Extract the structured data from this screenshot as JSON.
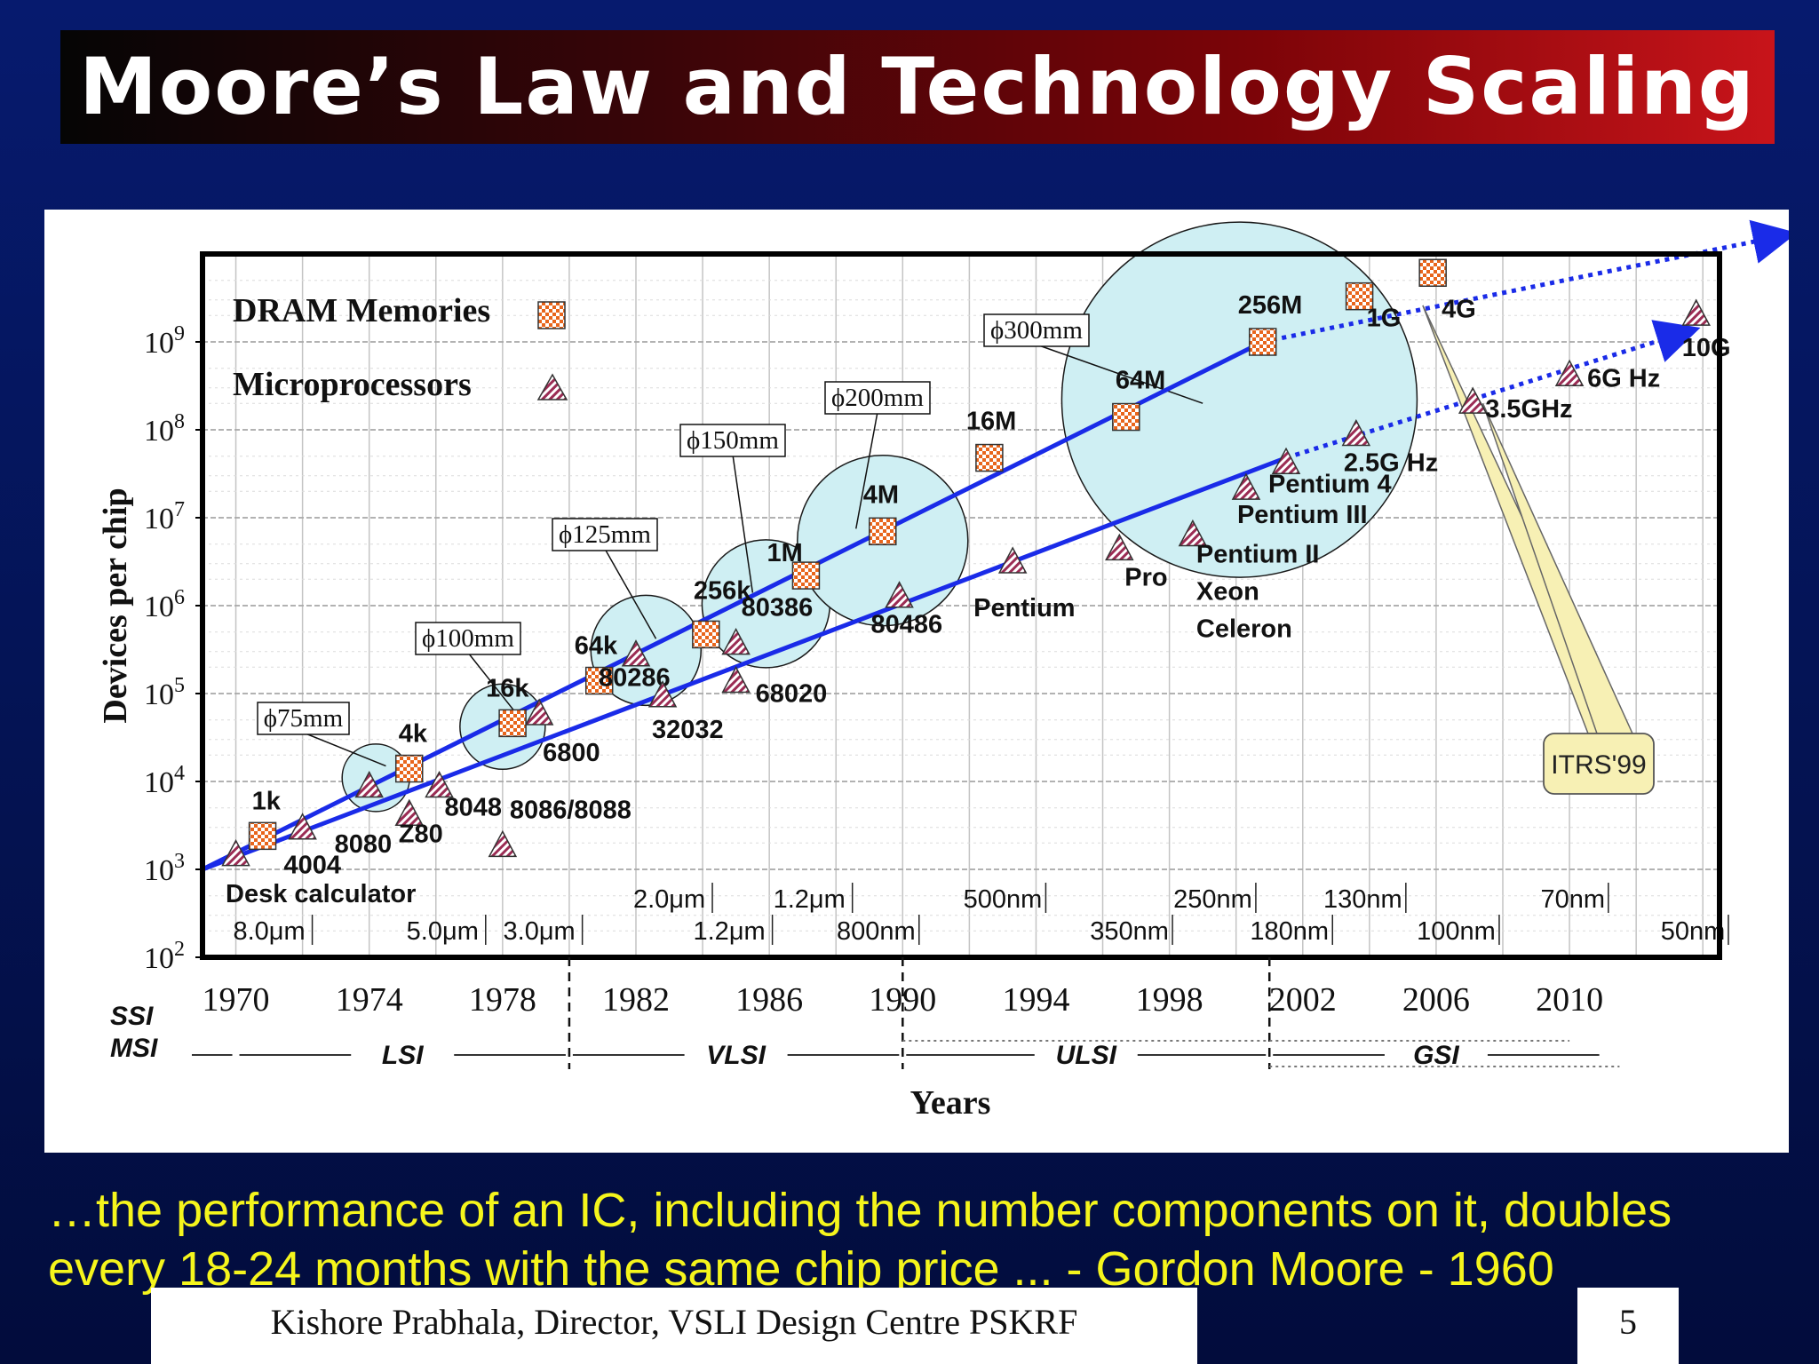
{
  "slide": {
    "title": "Moore’s Law and Technology Scaling",
    "quote": "…the performance of an IC, including the number components on it, doubles every 18-24 months with the same chip price ... - Gordon Moore - 1960",
    "footer": "Kishore Prabhala, Director, VSLI Design Centre PSKRF",
    "page_number": "5"
  },
  "colors": {
    "background": "#061a6e",
    "title_gradient_start": "#050505",
    "title_gradient_end": "#c8141a",
    "quote_text": "#f5f51c",
    "trend_line": "#1a2be8",
    "wafer_circle": "#cfeff3",
    "dram_marker": "#e8651c",
    "cpu_marker": "#9b2c54",
    "itrs_callout": "#f7f0b4"
  },
  "chart_data": {
    "type": "scatter",
    "ylabel": "Devices per chip",
    "xlabel": "Years",
    "y_scale": "log",
    "xlim": [
      1969,
      2014.5
    ],
    "ylim": [
      100,
      10000000000
    ],
    "x_ticks": [
      "1970",
      "1974",
      "1978",
      "1982",
      "1986",
      "1990",
      "1994",
      "1998",
      "2002",
      "2006",
      "2010"
    ],
    "y_ticks": [
      {
        "value": 100,
        "base": "10",
        "exp": "2"
      },
      {
        "value": 1000,
        "base": "10",
        "exp": "3"
      },
      {
        "value": 10000,
        "base": "10",
        "exp": "4"
      },
      {
        "value": 100000,
        "base": "10",
        "exp": "5"
      },
      {
        "value": 1000000,
        "base": "10",
        "exp": "6"
      },
      {
        "value": 10000000,
        "base": "10",
        "exp": "7"
      },
      {
        "value": 100000000,
        "base": "10",
        "exp": "8"
      },
      {
        "value": 1000000000,
        "base": "10",
        "exp": "9"
      }
    ],
    "grid": true,
    "legend": {
      "position": "top-left",
      "entries": [
        {
          "name": "DRAM Memories",
          "marker": "checkered-square"
        },
        {
          "name": "Microprocessors",
          "marker": "hatched-triangle"
        }
      ]
    },
    "series": [
      {
        "name": "DRAM Memories",
        "points": [
          {
            "x": 1970.8,
            "y": 2400,
            "label": "1k"
          },
          {
            "x": 1975.2,
            "y": 14000,
            "label": "4k"
          },
          {
            "x": 1978.3,
            "y": 46000,
            "label": "16k"
          },
          {
            "x": 1980.9,
            "y": 140000,
            "label": "64k"
          },
          {
            "x": 1984.1,
            "y": 470000,
            "label": "256k"
          },
          {
            "x": 1987.1,
            "y": 2200000,
            "label": "1M"
          },
          {
            "x": 1989.4,
            "y": 7000000,
            "label": "4M"
          },
          {
            "x": 1992.6,
            "y": 48000000,
            "label": "16M"
          },
          {
            "x": 1996.7,
            "y": 140000000,
            "label": "64M"
          },
          {
            "x": 2000.8,
            "y": 1000000000,
            "label": "256M"
          },
          {
            "x": 2003.7,
            "y": 3300000000,
            "label": "1G"
          },
          {
            "x": 2005.9,
            "y": 6100000000,
            "label": "4G"
          }
        ]
      },
      {
        "name": "Microprocessors",
        "points": [
          {
            "x": 1970.0,
            "y": 1500,
            "label": "4004"
          },
          {
            "x": 1972.0,
            "y": 3000,
            "label": "8080"
          },
          {
            "x": 1974.0,
            "y": 9000,
            "label": ""
          },
          {
            "x": 1975.2,
            "y": 4300,
            "label": "Z80"
          },
          {
            "x": 1976.1,
            "y": 9000,
            "label": "8048"
          },
          {
            "x": 1978.0,
            "y": 1900,
            "label": "8086/8088"
          },
          {
            "x": 1979.1,
            "y": 60000,
            "label": "6800"
          },
          {
            "x": 1982.0,
            "y": 280000,
            "label": "80286"
          },
          {
            "x": 1982.8,
            "y": 96000,
            "label": "32032"
          },
          {
            "x": 1985.0,
            "y": 380000,
            "label": "80386"
          },
          {
            "x": 1985.0,
            "y": 140000,
            "label": "68020"
          },
          {
            "x": 1989.9,
            "y": 1300000,
            "label": "80486"
          },
          {
            "x": 1993.3,
            "y": 3200000,
            "label": "Pentium"
          },
          {
            "x": 1996.5,
            "y": 4500000,
            "label": "Pro"
          },
          {
            "x": 1998.7,
            "y": 6500000,
            "label": "Pentium II Xeon Celeron"
          },
          {
            "x": 2000.3,
            "y": 22000000,
            "label": "Pentium III"
          },
          {
            "x": 2001.5,
            "y": 43000000,
            "label": "Pentium 4"
          },
          {
            "x": 2003.6,
            "y": 90000000,
            "label": "2.5G Hz"
          },
          {
            "x": 2007.1,
            "y": 210000000,
            "label": "3.5GHz"
          },
          {
            "x": 2010.0,
            "y": 430000000,
            "label": "6G Hz"
          },
          {
            "x": 2013.8,
            "y": 2100000000,
            "label": "10G"
          }
        ]
      }
    ],
    "trend_lines": [
      {
        "name": "DRAM trend",
        "from": [
          1969.0,
          1000
        ],
        "to": [
          2000.8,
          1000000000
        ],
        "projected_to": [
          2016.7,
          17000000000
        ]
      },
      {
        "name": "Microprocessor trend",
        "from": [
          1969.0,
          1000
        ],
        "to": [
          2001.5,
          48000000
        ],
        "projected_to": [
          2013.8,
          1400000000
        ]
      }
    ],
    "wafer_sizes": [
      {
        "label": "ϕ75mm",
        "x": 1974.3,
        "y": 12000
      },
      {
        "label": "ϕ100mm",
        "x": 1978.2,
        "y": 55000
      },
      {
        "label": "ϕ125mm",
        "x": 1982.4,
        "y": 230000
      },
      {
        "label": "ϕ150mm",
        "x": 1985.9,
        "y": 850000
      },
      {
        "label": "ϕ200mm",
        "x": 1989.4,
        "y": 6500000
      },
      {
        "label": "ϕ300mm",
        "x": 2000.1,
        "y": 220000000
      }
    ],
    "feature_sizes": [
      {
        "label": "8.0μm",
        "x": 1971.0,
        "row": "lower"
      },
      {
        "label": "5.0μm",
        "x": 1976.2,
        "row": "lower"
      },
      {
        "label": "3.0μm",
        "x": 1979.1,
        "row": "lower"
      },
      {
        "label": "2.0μm",
        "x": 1983.0,
        "row": "upper"
      },
      {
        "label": "1.2μm",
        "x": 1984.8,
        "row": "lower"
      },
      {
        "label": "1.2μm",
        "x": 1987.2,
        "row": "upper"
      },
      {
        "label": "800nm",
        "x": 1989.2,
        "row": "lower"
      },
      {
        "label": "500nm",
        "x": 1993.0,
        "row": "upper"
      },
      {
        "label": "350nm",
        "x": 1996.8,
        "row": "lower"
      },
      {
        "label": "250nm",
        "x": 1999.3,
        "row": "upper"
      },
      {
        "label": "180nm",
        "x": 2001.6,
        "row": "lower"
      },
      {
        "label": "130nm",
        "x": 2003.8,
        "row": "upper"
      },
      {
        "label": "100nm",
        "x": 2006.6,
        "row": "lower"
      },
      {
        "label": "70nm",
        "x": 2010.1,
        "row": "upper"
      },
      {
        "label": "50nm",
        "x": 2013.7,
        "row": "lower"
      }
    ],
    "annotations": {
      "desk_calculator": "Desk calculator",
      "itrs": "ITRS'99"
    },
    "integration_eras": [
      {
        "label": "SSI",
        "start": null,
        "end": 1970
      },
      {
        "label": "MSI",
        "start": null,
        "end": 1970
      },
      {
        "label": "LSI",
        "start": 1970,
        "end": 1980
      },
      {
        "label": "VLSI",
        "start": 1980,
        "end": 1990
      },
      {
        "label": "ULSI",
        "start": 1990,
        "end": 2001
      },
      {
        "label": "GSI",
        "start": 2001,
        "end": 2011
      }
    ]
  }
}
